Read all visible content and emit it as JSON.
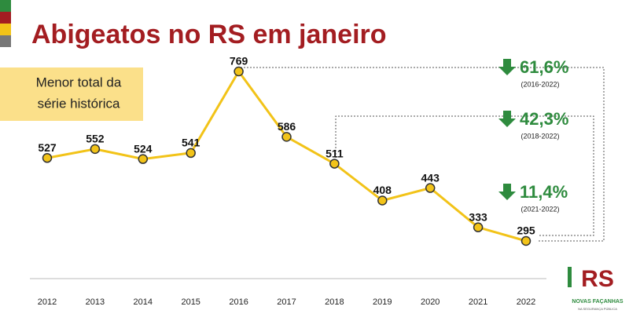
{
  "chart_data": {
    "type": "line",
    "title": "Abigeatos no RS em janeiro",
    "note": [
      "Menor total da",
      "série histórica"
    ],
    "categories": [
      "2012",
      "2013",
      "2014",
      "2015",
      "2016",
      "2017",
      "2018",
      "2019",
      "2020",
      "2021",
      "2022"
    ],
    "values": [
      527,
      552,
      524,
      541,
      769,
      586,
      511,
      408,
      443,
      333,
      295
    ],
    "color": "#f2c318",
    "annotations": [
      {
        "label": "61,6%",
        "period": "(2016-2022)"
      },
      {
        "label": "42,3%",
        "period": "(2018-2022)"
      },
      {
        "label": "11,4%",
        "period": "(2021-2022)"
      }
    ],
    "logo": {
      "mark": "RS",
      "tagline": "NOVAS FAÇANHAS",
      "subline": "NA SEGURANÇA PÚBLICA"
    }
  }
}
